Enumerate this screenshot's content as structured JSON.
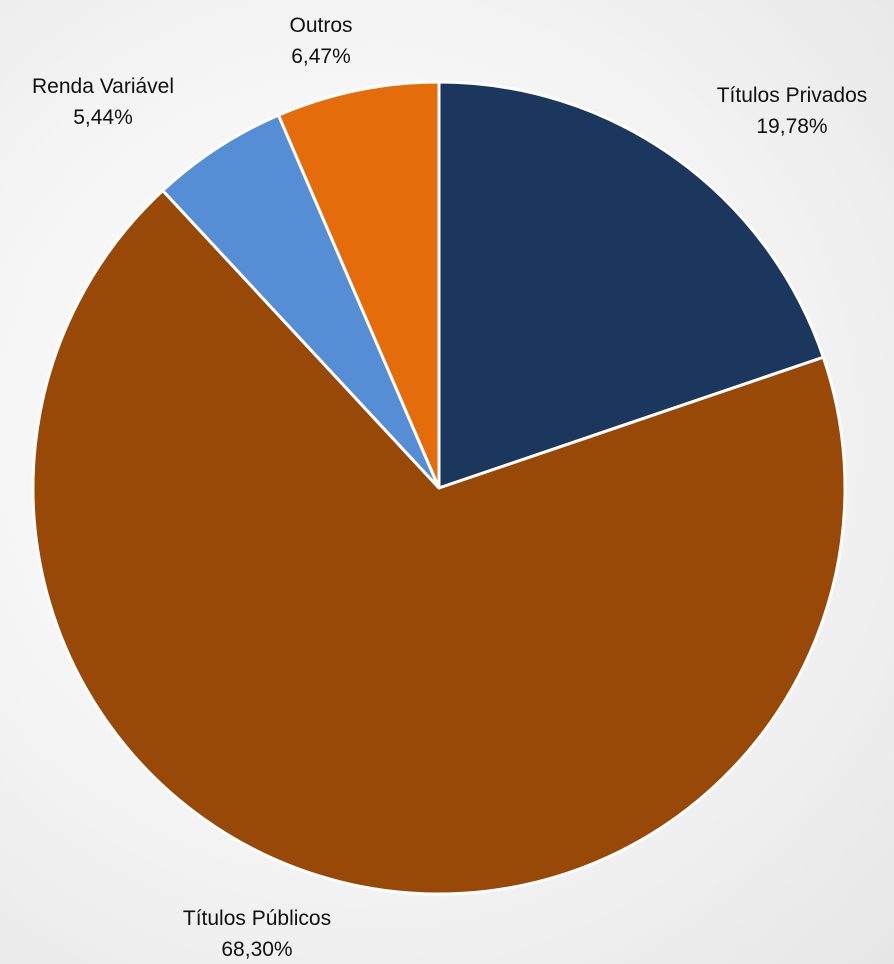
{
  "chart_data": {
    "type": "pie",
    "title": "",
    "slices": [
      {
        "label": "Títulos Privados",
        "value": 19.78,
        "value_label": "19,78%",
        "color": "#1b375e"
      },
      {
        "label": "Títulos Públicos",
        "value": 68.3,
        "value_label": "68,30%",
        "color": "#984807"
      },
      {
        "label": "Renda Variável",
        "value": 5.44,
        "value_label": "5,44%",
        "color": "#558ed5"
      },
      {
        "label": "Outros",
        "value": 6.47,
        "value_label": "6,47%",
        "color": "#e46c0a"
      }
    ],
    "start_angle": "12 o'clock",
    "direction": "clockwise",
    "legend": "none"
  }
}
